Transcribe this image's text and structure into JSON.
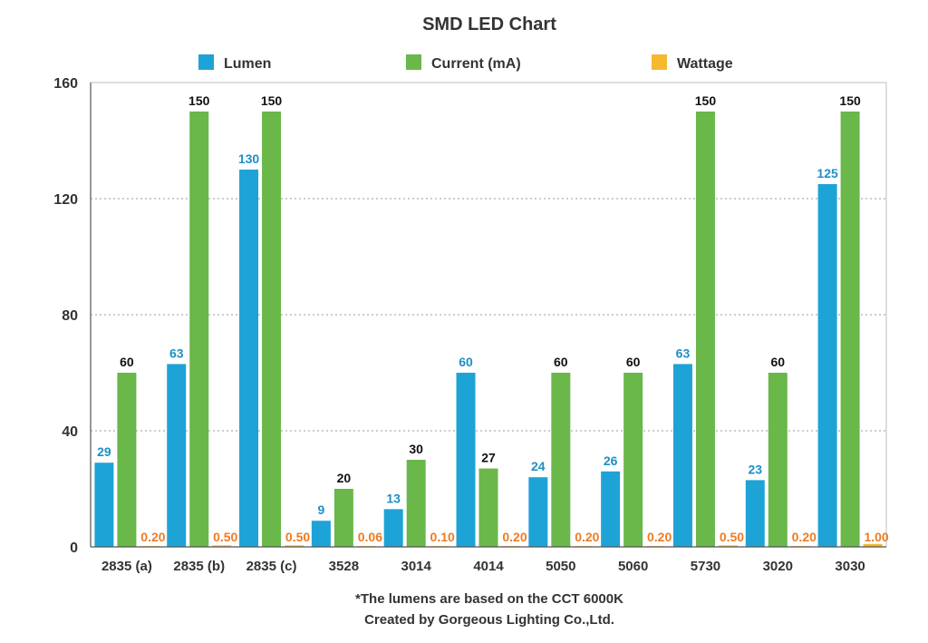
{
  "chart_data": {
    "type": "bar",
    "title": "SMD LED Chart",
    "categories": [
      "2835 (a)",
      "2835 (b)",
      "2835 (c)",
      "3528",
      "3014",
      "4014",
      "5050",
      "5060",
      "5730",
      "3020",
      "3030"
    ],
    "series": [
      {
        "name": "Lumen",
        "color": "#1ea3d6",
        "label_color": "#1e8fc4",
        "values": [
          29,
          63,
          130,
          9,
          13,
          60,
          24,
          26,
          63,
          23,
          125
        ],
        "labels": [
          "29",
          "63",
          "130",
          "9",
          "13",
          "60",
          "24",
          "26",
          "63",
          "23",
          "125"
        ]
      },
      {
        "name": "Current (mA)",
        "color": "#6ab74a",
        "label_color": "#111111",
        "values": [
          60,
          150,
          150,
          20,
          30,
          27,
          60,
          60,
          150,
          60,
          150
        ],
        "labels": [
          "60",
          "150",
          "150",
          "20",
          "30",
          "27",
          "60",
          "60",
          "150",
          "60",
          "150"
        ]
      },
      {
        "name": "Wattage",
        "color": "#f5b82e",
        "label_color": "#f07a22",
        "values": [
          0.2,
          0.5,
          0.5,
          0.06,
          0.1,
          0.2,
          0.2,
          0.2,
          0.5,
          0.2,
          1.0
        ],
        "labels": [
          "0.20",
          "0.50",
          "0.50",
          "0.06",
          "0.10",
          "0.20",
          "0.20",
          "0.20",
          "0.50",
          "0.20",
          "1.00"
        ]
      }
    ],
    "ylim": [
      0,
      160
    ],
    "yticks": [
      "0",
      "40",
      "80",
      "120",
      "160"
    ],
    "ytick_values": [
      0,
      40,
      80,
      120,
      160
    ],
    "grid": true,
    "legend_position": "top",
    "notes": [
      "*The lumens are based on the CCT 6000K",
      "Created by Gorgeous Lighting Co.,Ltd."
    ]
  }
}
